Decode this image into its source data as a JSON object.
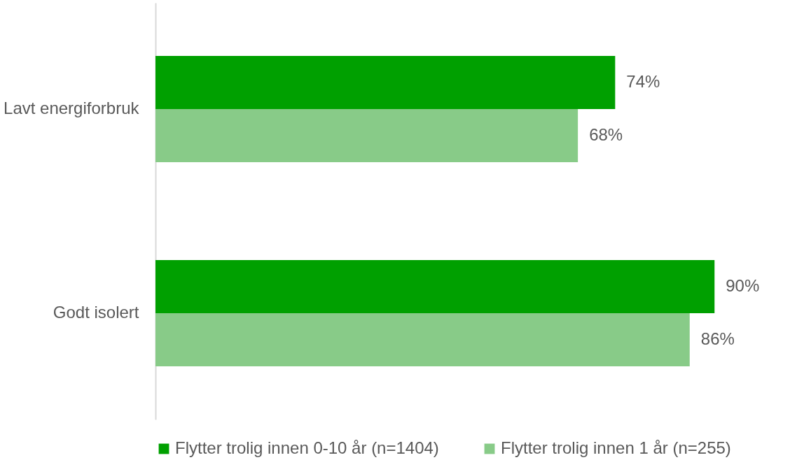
{
  "chart_data": {
    "type": "bar",
    "orientation": "horizontal",
    "categories": [
      "Lavt energiforbruk",
      "Godt isolert"
    ],
    "series": [
      {
        "name": "Flytter trolig innen 0-10 år (n=1404)",
        "color": "#00a000",
        "values": [
          74,
          90
        ],
        "value_labels": [
          "74%",
          "90%"
        ]
      },
      {
        "name": "Flytter trolig innen 1 år (n=255)",
        "color": "#88cb88",
        "values": [
          68,
          86
        ],
        "value_labels": [
          "68%",
          "86%"
        ]
      }
    ],
    "tick_labels": "y",
    "grid": false,
    "legend": "bottom"
  }
}
